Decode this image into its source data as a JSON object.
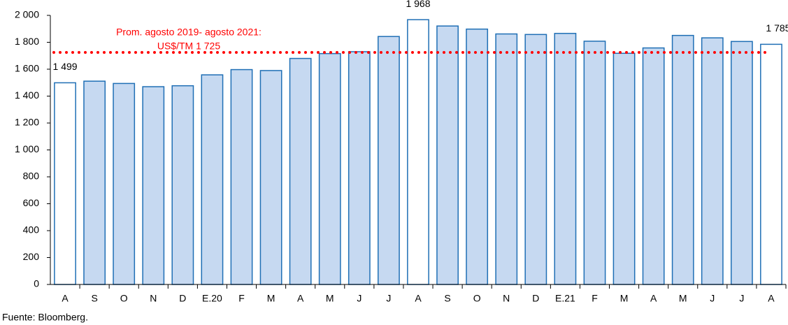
{
  "chart_data": {
    "type": "bar",
    "categories": [
      "A",
      "S",
      "O",
      "N",
      "D",
      "E.20",
      "F",
      "M",
      "A",
      "M",
      "J",
      "J",
      "A",
      "S",
      "O",
      "N",
      "D",
      "E.21",
      "F",
      "M",
      "A",
      "M",
      "J",
      "J",
      "A"
    ],
    "values": [
      1499,
      1511,
      1494,
      1470,
      1477,
      1558,
      1597,
      1590,
      1680,
      1716,
      1730,
      1843,
      1968,
      1921,
      1898,
      1862,
      1858,
      1866,
      1808,
      1718,
      1758,
      1851,
      1833,
      1806,
      1785
    ],
    "value_labels": [
      "1 499",
      null,
      null,
      null,
      null,
      null,
      null,
      null,
      null,
      null,
      null,
      null,
      "1 968",
      null,
      null,
      null,
      null,
      null,
      null,
      null,
      null,
      null,
      null,
      null,
      "1 785"
    ],
    "colors": [
      "#ffffff",
      "#c6d9f1",
      "#c6d9f1",
      "#c6d9f1",
      "#c6d9f1",
      "#c6d9f1",
      "#c6d9f1",
      "#c6d9f1",
      "#c6d9f1",
      "#c6d9f1",
      "#c6d9f1",
      "#c6d9f1",
      "#ffffff",
      "#c6d9f1",
      "#c6d9f1",
      "#c6d9f1",
      "#c6d9f1",
      "#c6d9f1",
      "#c6d9f1",
      "#c6d9f1",
      "#c6d9f1",
      "#c6d9f1",
      "#c6d9f1",
      "#c6d9f1",
      "#ffffff"
    ],
    "edge_color": "#1f6fb5",
    "ylim": [
      0,
      2000
    ],
    "yticks": [
      0,
      200,
      400,
      600,
      800,
      {
        "value": 1000,
        "label": "1 000"
      },
      {
        "value": 1200,
        "label": "1 200"
      },
      {
        "value": 1400,
        "label": "1 400"
      },
      {
        "value": 1600,
        "label": "1 600"
      },
      {
        "value": 1800,
        "label": "1 800"
      },
      {
        "value": 2000,
        "label": "2 000"
      }
    ],
    "reference_line": {
      "value": 1725,
      "color": "#ff0000",
      "label": [
        "Prom. agosto 2019-  agosto 2021:",
        "US$/TM 1 725"
      ]
    },
    "source": "Fuente: Bloomberg."
  }
}
